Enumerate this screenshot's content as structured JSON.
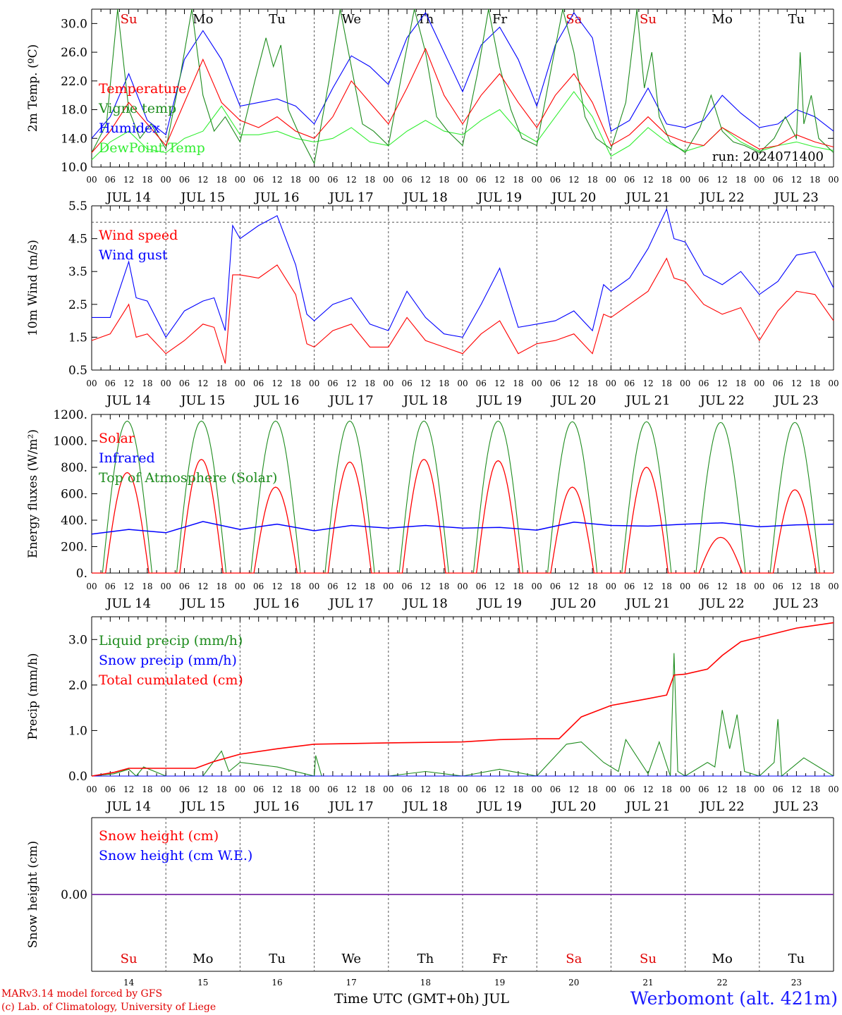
{
  "station": "Werbomont (alt. 421m)",
  "credits": [
    "MARv3.14 model forced by GFS",
    "(c) Lab. of Climatology, University of Liege"
  ],
  "run_label": "run: 2024071400",
  "x_axis": {
    "title": "Time UTC (GMT+0h) JUL",
    "hour_ticks": [
      "00",
      "06",
      "12",
      "18"
    ],
    "dates": [
      "JUL 14",
      "JUL 15",
      "JUL 16",
      "JUL 17",
      "JUL 18",
      "JUL 19",
      "JUL 20",
      "JUL 21",
      "JUL 22",
      "JUL 23"
    ],
    "day_numbers": [
      "14",
      "15",
      "16",
      "17",
      "18",
      "19",
      "20",
      "21",
      "22",
      "23"
    ],
    "weekdays": [
      "Su",
      "Mo",
      "Tu",
      "We",
      "Th",
      "Fr",
      "Sa",
      "Su",
      "Mo",
      "Tu"
    ],
    "weekend_flags": [
      true,
      false,
      false,
      false,
      false,
      false,
      true,
      true,
      false,
      false
    ],
    "weekend_color": "#e00000",
    "weekday_color": "#000000"
  },
  "colors": {
    "red": "#ff0000",
    "green": "#1e8c1e",
    "blue": "#0000ff",
    "lightgreen": "#33ee33",
    "purple": "#7a2aa8",
    "grid": "#555555"
  },
  "chart_data": [
    {
      "type": "line",
      "ylabel": "2m Temp. (ºC)",
      "ylim": [
        10,
        32
      ],
      "yticks": [
        10,
        14,
        18,
        22,
        26,
        30
      ],
      "ytick_labels": [
        "10.0",
        "14.0",
        "18.0",
        "22.0",
        "26.0",
        "30.0"
      ],
      "series": [
        {
          "name": "Temperature",
          "color": "red",
          "x_days": [
            0,
            0.25,
            0.5,
            0.75,
            1,
            1.25,
            1.5,
            1.75,
            2,
            2.25,
            2.5,
            2.75,
            3,
            3.25,
            3.5,
            3.75,
            4,
            4.25,
            4.5,
            4.75,
            5,
            5.25,
            5.5,
            5.75,
            6,
            6.25,
            6.5,
            6.75,
            7,
            7.25,
            7.5,
            7.75,
            8,
            8.25,
            8.5,
            8.75,
            9,
            9.25,
            9.5,
            9.75,
            10
          ],
          "y": [
            12,
            15,
            19,
            16,
            13,
            19,
            25,
            19,
            16.5,
            15.5,
            17,
            15,
            14,
            17,
            22,
            19,
            16,
            21,
            26.5,
            20,
            16,
            20,
            23,
            19,
            15.5,
            20,
            23,
            19,
            13,
            14.5,
            17,
            14.5,
            13.5,
            13,
            15.5,
            14,
            12.5,
            13,
            14.5,
            13.5,
            12.8
          ]
        },
        {
          "name": "Vigne temp",
          "color": "green",
          "x_days": [
            0,
            0.2,
            0.35,
            0.5,
            0.65,
            0.8,
            1,
            1.2,
            1.35,
            1.5,
            1.65,
            1.8,
            2,
            2.2,
            2.35,
            2.45,
            2.55,
            2.65,
            2.8,
            3,
            3.2,
            3.35,
            3.5,
            3.65,
            3.8,
            4,
            4.2,
            4.35,
            4.5,
            4.65,
            4.8,
            5,
            5.2,
            5.35,
            5.5,
            5.65,
            5.8,
            6,
            6.2,
            6.35,
            6.5,
            6.65,
            6.8,
            7,
            7.2,
            7.35,
            7.45,
            7.55,
            7.65,
            7.8,
            8,
            8.2,
            8.35,
            8.5,
            8.65,
            8.8,
            9,
            9.2,
            9.35,
            9.5,
            9.55,
            9.6,
            9.7,
            9.8,
            10
          ],
          "y": [
            12,
            16,
            32,
            18,
            14,
            16,
            12.5,
            23,
            32,
            20,
            15,
            17,
            13.5,
            22,
            28,
            24,
            27,
            18,
            14.5,
            10.5,
            22,
            32,
            24,
            16,
            15,
            13,
            24,
            32,
            26,
            17,
            15,
            13,
            23,
            32,
            24,
            18,
            14,
            13,
            24,
            33,
            26,
            17,
            14,
            12.5,
            19,
            32,
            21,
            26,
            17,
            13.5,
            12,
            15.5,
            20,
            15,
            13.5,
            13,
            12,
            14,
            17,
            14,
            26,
            16,
            20,
            14,
            12
          ]
        },
        {
          "name": "Humidex",
          "color": "blue",
          "x_days": [
            0,
            0.25,
            0.5,
            0.75,
            1,
            1.25,
            1.5,
            1.75,
            2,
            2.25,
            2.5,
            2.75,
            3,
            3.25,
            3.5,
            3.75,
            4,
            4.25,
            4.5,
            4.75,
            5,
            5.25,
            5.5,
            5.75,
            6,
            6.25,
            6.5,
            6.75,
            7,
            7.25,
            7.5,
            7.75,
            8,
            8.25,
            8.5,
            8.75,
            9,
            9.25,
            9.5,
            9.75,
            10
          ],
          "y": [
            14,
            17,
            23,
            16.5,
            14.5,
            25,
            29,
            25,
            18.5,
            19,
            19.5,
            18.5,
            16,
            21,
            25.5,
            24,
            21.5,
            28,
            31.5,
            26,
            20.5,
            27,
            29.5,
            25,
            18.5,
            27,
            31.5,
            28,
            15,
            16.5,
            21,
            16,
            15.5,
            16.5,
            20,
            17.5,
            15.5,
            16,
            18,
            17,
            15
          ]
        },
        {
          "name": "DewPoint Temp",
          "color": "lightgreen",
          "x_days": [
            0,
            0.25,
            0.5,
            0.75,
            1,
            1.25,
            1.5,
            1.75,
            2,
            2.25,
            2.5,
            2.75,
            3,
            3.25,
            3.5,
            3.75,
            4,
            4.25,
            4.5,
            4.75,
            5,
            5.25,
            5.5,
            5.75,
            6,
            6.25,
            6.5,
            6.75,
            7,
            7.25,
            7.5,
            7.75,
            8,
            8.25,
            8.5,
            8.75,
            9,
            9.25,
            9.5,
            9.75,
            10
          ],
          "y": [
            11,
            13.5,
            15,
            12.5,
            12,
            14,
            15,
            18.5,
            14.5,
            14.5,
            15,
            14,
            13.5,
            14,
            15.5,
            13.5,
            13,
            15,
            16.5,
            15,
            14.5,
            16.5,
            18,
            15,
            13.5,
            17,
            20.5,
            17,
            11.5,
            13,
            15.5,
            13.5,
            12.2,
            13,
            15.5,
            13.5,
            12.2,
            13,
            13.5,
            12.8,
            12.3
          ]
        }
      ]
    },
    {
      "type": "line",
      "ylabel": "10m Wind (m/s)",
      "ylim": [
        0.5,
        5.5
      ],
      "yticks": [
        0.5,
        1.5,
        2.5,
        3.5,
        4.5,
        5.5
      ],
      "ytick_labels": [
        "0.5",
        "1.5",
        "2.5",
        "3.5",
        "4.5",
        "5.5"
      ],
      "reference_line": 5.0,
      "series": [
        {
          "name": "Wind speed",
          "color": "red",
          "x_days": [
            0,
            0.25,
            0.5,
            0.6,
            0.75,
            1,
            1.25,
            1.5,
            1.65,
            1.8,
            1.9,
            2,
            2.25,
            2.5,
            2.75,
            2.9,
            3,
            3.25,
            3.5,
            3.75,
            4,
            4.25,
            4.5,
            4.75,
            5,
            5.25,
            5.5,
            5.75,
            6,
            6.25,
            6.5,
            6.75,
            6.9,
            7,
            7.25,
            7.5,
            7.75,
            7.85,
            8,
            8.25,
            8.5,
            8.75,
            9,
            9.25,
            9.5,
            9.75,
            10
          ],
          "y": [
            1.4,
            1.6,
            2.5,
            1.5,
            1.6,
            1.0,
            1.4,
            1.9,
            1.8,
            0.7,
            3.4,
            3.4,
            3.3,
            3.7,
            2.8,
            1.3,
            1.2,
            1.7,
            1.9,
            1.2,
            1.2,
            2.1,
            1.4,
            1.2,
            1.0,
            1.6,
            2.0,
            1.0,
            1.3,
            1.4,
            1.6,
            1.0,
            2.2,
            2.1,
            2.5,
            2.9,
            3.9,
            3.3,
            3.2,
            2.5,
            2.2,
            2.4,
            1.4,
            2.3,
            2.9,
            2.8,
            2.0
          ]
        },
        {
          "name": "Wind gust",
          "color": "blue",
          "x_days": [
            0,
            0.25,
            0.5,
            0.6,
            0.75,
            1,
            1.25,
            1.5,
            1.65,
            1.8,
            1.9,
            2,
            2.25,
            2.5,
            2.75,
            2.9,
            3,
            3.25,
            3.5,
            3.75,
            4,
            4.25,
            4.5,
            4.75,
            5,
            5.25,
            5.5,
            5.75,
            6,
            6.25,
            6.5,
            6.75,
            6.9,
            7,
            7.25,
            7.5,
            7.75,
            7.85,
            8,
            8.25,
            8.5,
            8.75,
            9,
            9.25,
            9.5,
            9.75,
            10
          ],
          "y": [
            2.1,
            2.1,
            3.8,
            2.7,
            2.6,
            1.5,
            2.3,
            2.6,
            2.7,
            1.7,
            4.9,
            4.5,
            4.9,
            5.2,
            3.7,
            2.2,
            2.0,
            2.5,
            2.7,
            1.9,
            1.7,
            2.9,
            2.1,
            1.6,
            1.5,
            2.5,
            3.6,
            1.8,
            1.9,
            2.0,
            2.3,
            1.7,
            3.1,
            2.9,
            3.3,
            4.2,
            5.4,
            4.5,
            4.4,
            3.4,
            3.1,
            3.5,
            2.8,
            3.2,
            4.0,
            4.1,
            3.0
          ]
        }
      ]
    },
    {
      "type": "line",
      "ylabel": "Energy fluxes (W/m²)",
      "ylim": [
        0,
        1200
      ],
      "yticks": [
        0,
        200,
        400,
        600,
        800,
        1000,
        1200
      ],
      "ytick_labels": [
        "0.",
        "200.",
        "400.",
        "600.",
        "800.",
        "1000.",
        "1200."
      ],
      "series": [
        {
          "name": "Solar",
          "color": "red",
          "daily_peak": [
            760,
            860,
            650,
            840,
            860,
            850,
            650,
            800,
            270,
            630
          ]
        },
        {
          "name": "Infrared",
          "color": "blue",
          "x_days": [
            0,
            0.5,
            1,
            1.5,
            2,
            2.5,
            3,
            3.5,
            4,
            4.5,
            5,
            5.5,
            6,
            6.5,
            7,
            7.5,
            8,
            8.5,
            9,
            9.5,
            10
          ],
          "y": [
            295,
            330,
            305,
            390,
            330,
            370,
            320,
            360,
            340,
            360,
            340,
            345,
            325,
            385,
            360,
            355,
            370,
            380,
            350,
            365,
            370
          ]
        },
        {
          "name": "Top of Atmosphere (Solar)",
          "color": "green",
          "daily_peak": [
            1150,
            1150,
            1150,
            1150,
            1150,
            1150,
            1145,
            1145,
            1140,
            1140
          ]
        }
      ]
    },
    {
      "type": "line",
      "ylabel": "Precip (mm/h)",
      "ylim": [
        0,
        3.5
      ],
      "yticks": [
        0,
        1,
        2,
        3
      ],
      "ytick_labels": [
        "0.0",
        "1.0",
        "2.0",
        "3.0"
      ],
      "series": [
        {
          "name": "Liquid precip (mm/h)",
          "color": "green",
          "x_days": [
            0,
            0.3,
            0.5,
            0.6,
            0.7,
            1,
            1.5,
            1.75,
            1.85,
            2,
            2.5,
            3,
            3.02,
            3.1,
            4,
            4.5,
            5,
            5.5,
            6,
            6.4,
            6.6,
            6.9,
            7.1,
            7.2,
            7.5,
            7.65,
            7.8,
            7.85,
            7.9,
            8,
            8.3,
            8.4,
            8.5,
            8.6,
            8.7,
            8.8,
            9,
            9.2,
            9.25,
            9.3,
            9.6,
            10
          ],
          "y": [
            0,
            0.05,
            0.15,
            0,
            0.2,
            0,
            0,
            0.55,
            0.1,
            0.3,
            0.2,
            0,
            0.45,
            0,
            0,
            0.1,
            0,
            0.15,
            0,
            0.7,
            0.75,
            0.3,
            0.1,
            0.8,
            0.05,
            0.75,
            0,
            2.7,
            0.1,
            0,
            0.3,
            0.2,
            1.45,
            0.6,
            1.35,
            0.1,
            0,
            0.3,
            1.25,
            0,
            0.4,
            0
          ]
        },
        {
          "name": "Snow precip (mm/h)",
          "color": "blue",
          "x_days": [
            0,
            10
          ],
          "y": [
            0,
            0
          ]
        },
        {
          "name": "Total cumulated (cm)",
          "color": "red",
          "x_days": [
            0,
            0.3,
            0.5,
            0.75,
            1,
            1.4,
            1.65,
            2,
            2.5,
            3,
            4,
            5,
            5.5,
            6,
            6.3,
            6.6,
            7,
            7.5,
            7.75,
            7.85,
            8,
            8.3,
            8.5,
            8.75,
            9,
            9.5,
            10
          ],
          "y": [
            0,
            0.08,
            0.17,
            0.17,
            0.17,
            0.17,
            0.32,
            0.48,
            0.6,
            0.7,
            0.73,
            0.75,
            0.8,
            0.82,
            0.82,
            1.3,
            1.55,
            1.7,
            1.78,
            2.22,
            2.24,
            2.35,
            2.65,
            2.95,
            3.05,
            3.25,
            3.37
          ]
        }
      ]
    },
    {
      "type": "line",
      "ylabel": "Snow height (cm)",
      "ytick_labels": [
        "0.00"
      ],
      "series": [
        {
          "name": "Snow height (cm)",
          "color": "red",
          "x_days": [
            0,
            10
          ],
          "y": [
            0,
            0
          ]
        },
        {
          "name": "Snow height (cm W.E.)",
          "color": "blue",
          "x_days": [
            0,
            10
          ],
          "y": [
            0,
            0
          ]
        }
      ]
    }
  ]
}
